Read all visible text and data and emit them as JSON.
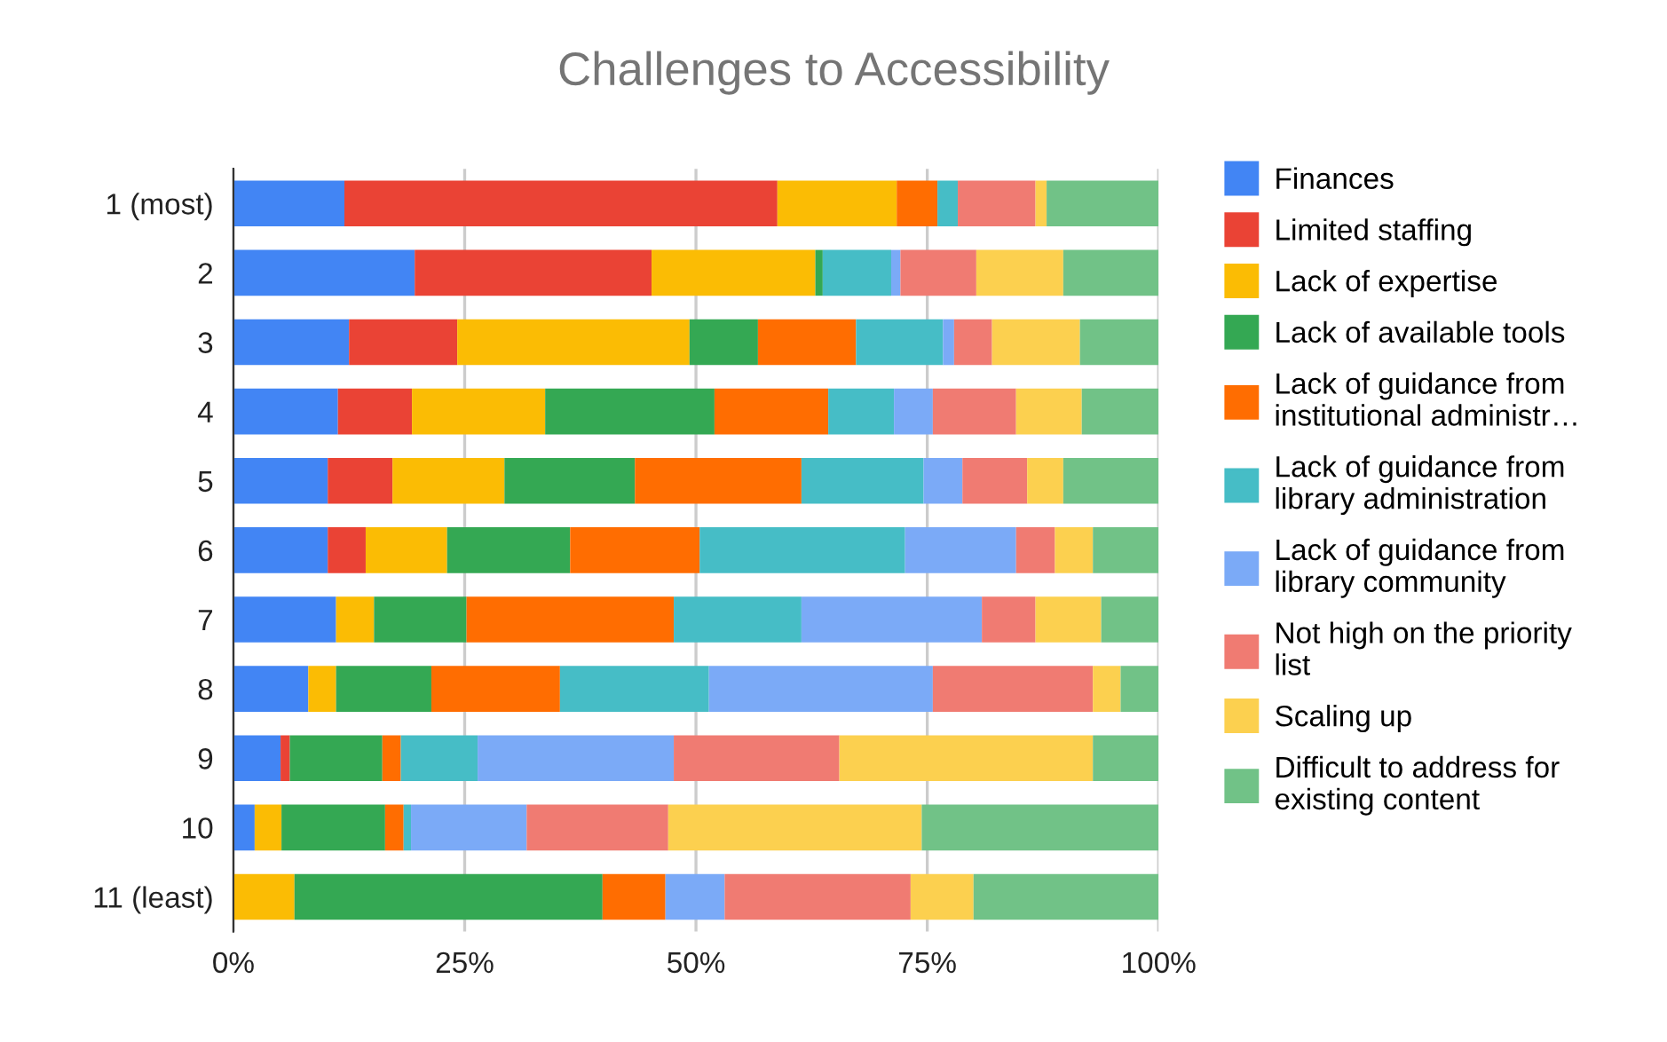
{
  "chart_data": {
    "type": "bar",
    "orientation": "horizontal",
    "stacked": true,
    "title": "Challenges to Accessibility",
    "categories": [
      "1 (most)",
      "2",
      "3",
      "4",
      "5",
      "6",
      "7",
      "8",
      "9",
      "10",
      "11 (least)"
    ],
    "series": [
      {
        "name": "Finances",
        "color": "#4285f4",
        "values": [
          12.0,
          19.6,
          12.5,
          11.3,
          10.2,
          10.2,
          11.1,
          8.1,
          5.1,
          2.3,
          0
        ]
      },
      {
        "name": "Limited staffing",
        "color": "#ea4335",
        "values": [
          46.8,
          25.6,
          11.7,
          8.0,
          7.0,
          4.1,
          0,
          0,
          1.0,
          0,
          0
        ]
      },
      {
        "name": "Lack of expertise",
        "color": "#fbbc04",
        "values": [
          12.9,
          17.7,
          25.1,
          14.4,
          12.1,
          8.8,
          4.1,
          3.0,
          0,
          2.9,
          6.6
        ]
      },
      {
        "name": "Lack of available tools",
        "color": "#34a853",
        "values": [
          0,
          0.8,
          7.4,
          18.3,
          14.1,
          13.3,
          10.0,
          10.3,
          10.0,
          11.2,
          33.3
        ]
      },
      {
        "name": "Lack of guidance from\ninstitutional administr…",
        "color": "#ff6d01",
        "values": [
          4.4,
          0,
          10.6,
          12.3,
          18.0,
          14.0,
          22.4,
          13.9,
          2.0,
          2.0,
          6.8
        ]
      },
      {
        "name": "Lack of guidance from\nlibrary administration",
        "color": "#46bdc6",
        "values": [
          2.2,
          7.4,
          9.4,
          7.1,
          13.2,
          22.2,
          13.8,
          16.1,
          8.3,
          0.8,
          0
        ]
      },
      {
        "name": "Lack of guidance from\nlibrary community",
        "color": "#7baaf7",
        "values": [
          0,
          1.0,
          1.2,
          4.2,
          4.2,
          12.0,
          19.5,
          24.2,
          21.2,
          12.5,
          6.4
        ]
      },
      {
        "name": "Not high on the priority\nlist",
        "color": "#f07b72",
        "values": [
          8.4,
          8.2,
          4.1,
          9.0,
          7.0,
          4.2,
          5.8,
          17.3,
          17.9,
          15.3,
          20.1
        ]
      },
      {
        "name": "Scaling up",
        "color": "#fcd04f",
        "values": [
          1.2,
          9.4,
          9.5,
          7.1,
          3.9,
          4.1,
          7.1,
          3.0,
          27.4,
          27.4,
          6.8
        ]
      },
      {
        "name": "Difficult to address for\nexisting content",
        "color": "#71c287",
        "values": [
          12.1,
          10.3,
          8.5,
          8.3,
          10.3,
          7.1,
          6.2,
          4.1,
          7.1,
          25.6,
          20.0
        ]
      }
    ],
    "xlim": [
      0,
      100
    ],
    "xticks": [
      {
        "value": 0,
        "label": "0%"
      },
      {
        "value": 25,
        "label": "25%"
      },
      {
        "value": 50,
        "label": "50%"
      },
      {
        "value": 75,
        "label": "75%"
      },
      {
        "value": 100,
        "label": "100%"
      }
    ],
    "grid": "x",
    "legend": "right"
  }
}
